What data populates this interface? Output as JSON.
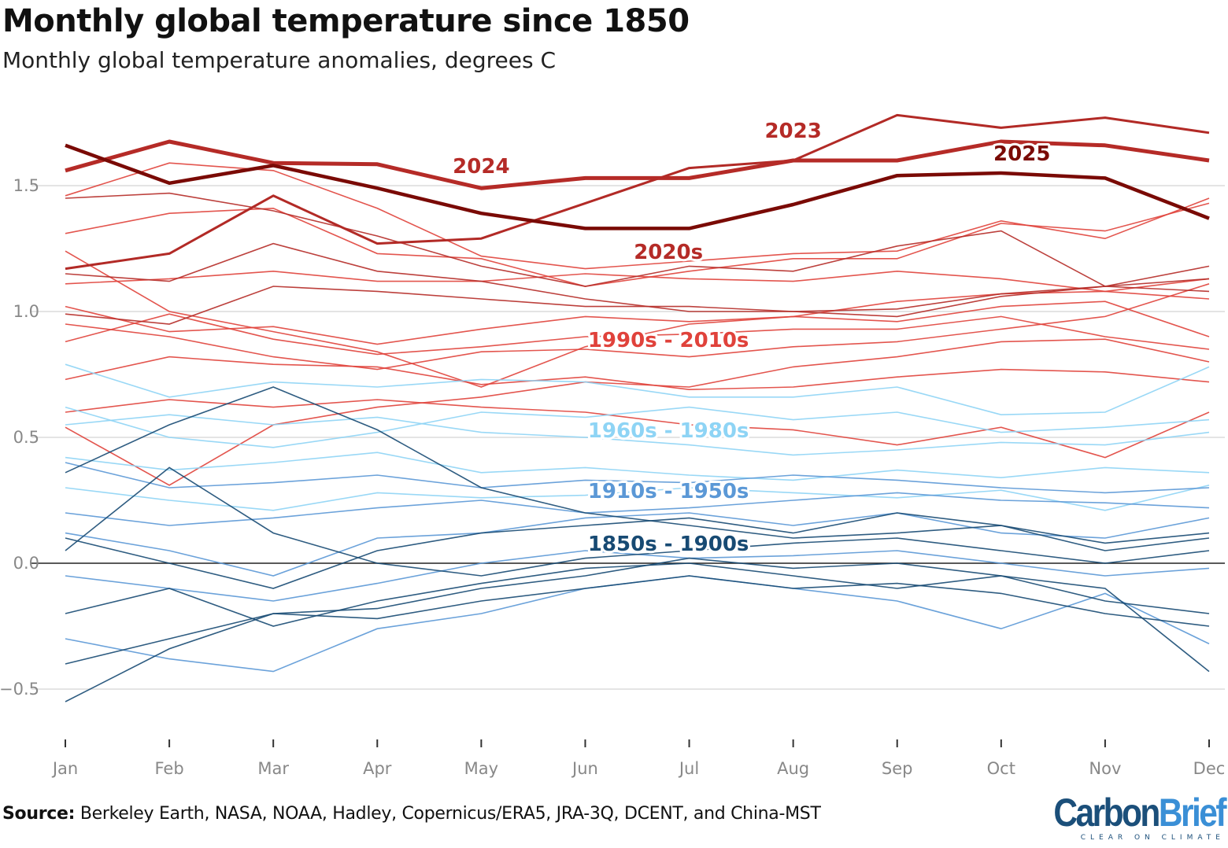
{
  "chart_data": {
    "type": "line",
    "title": "Monthly global temperature since 1850",
    "subtitle": "Monthly global temperature anomalies, degrees C",
    "xlabel": "",
    "ylabel": "",
    "categories": [
      "Jan",
      "Feb",
      "Mar",
      "Apr",
      "May",
      "Jun",
      "Jul",
      "Aug",
      "Sep",
      "Oct",
      "Nov",
      "Dec"
    ],
    "ylim": [
      -0.65,
      1.9
    ],
    "yticks": [
      "1.5",
      "1.0",
      "0.5",
      "0.0",
      "−0.5"
    ],
    "ytick_values": [
      1.5,
      1.0,
      0.5,
      0.0,
      -0.5
    ],
    "grid": true,
    "legend": "none",
    "highlighted": [
      {
        "name": "2023",
        "color": "#b22a26",
        "values": [
          1.17,
          1.23,
          1.46,
          1.27,
          1.29,
          1.43,
          1.57,
          1.6,
          1.78,
          1.73,
          1.77,
          1.71
        ]
      },
      {
        "name": "2024",
        "color": "#b52b27",
        "values": [
          1.56,
          1.675,
          1.59,
          1.585,
          1.49,
          1.53,
          1.53,
          1.6,
          1.6,
          1.675,
          1.66,
          1.6
        ]
      },
      {
        "name": "2025",
        "color": "#7a0a05",
        "values": [
          1.66,
          1.51,
          1.58,
          1.49,
          1.39,
          1.33,
          1.33,
          1.425,
          1.54,
          1.55,
          1.53,
          1.37
        ]
      }
    ],
    "groups": [
      {
        "name": "2020s",
        "color": "#b52b27",
        "series": [
          [
            1.15,
            1.12,
            1.27,
            1.16,
            1.12,
            1.05,
            1.0,
            1.0,
            1.01,
            1.07,
            1.1,
            1.13
          ],
          [
            1.45,
            1.47,
            1.4,
            1.3,
            1.18,
            1.1,
            1.18,
            1.16,
            1.26,
            1.32,
            1.1,
            1.08
          ],
          [
            0.99,
            0.95,
            1.1,
            1.08,
            1.05,
            1.02,
            1.02,
            1.0,
            0.98,
            1.06,
            1.1,
            1.18
          ]
        ]
      },
      {
        "name": "1990s - 2010s",
        "color": "#e0423b",
        "series": [
          [
            1.31,
            1.39,
            1.41,
            1.23,
            1.21,
            1.1,
            1.16,
            1.21,
            1.21,
            1.35,
            1.32,
            1.43
          ],
          [
            1.46,
            1.59,
            1.56,
            1.41,
            1.22,
            1.17,
            1.2,
            1.23,
            1.24,
            1.36,
            1.29,
            1.45
          ],
          [
            1.02,
            0.92,
            0.94,
            0.87,
            0.93,
            0.98,
            0.96,
            0.98,
            0.96,
            1.02,
            1.04,
            0.9
          ],
          [
            0.88,
            0.99,
            0.89,
            0.83,
            0.86,
            0.9,
            0.91,
            0.93,
            0.93,
            0.98,
            0.9,
            0.85
          ],
          [
            0.73,
            0.82,
            0.79,
            0.78,
            0.71,
            0.74,
            0.69,
            0.7,
            0.74,
            0.77,
            0.76,
            0.72
          ],
          [
            0.6,
            0.65,
            0.62,
            0.65,
            0.62,
            0.6,
            0.55,
            0.53,
            0.47,
            0.54,
            0.42,
            0.6
          ],
          [
            0.54,
            0.31,
            0.55,
            0.62,
            0.66,
            0.72,
            0.7,
            0.78,
            0.82,
            0.88,
            0.89,
            0.8
          ],
          [
            1.24,
            1.0,
            0.92,
            0.84,
            0.7,
            0.86,
            0.95,
            0.98,
            1.04,
            1.07,
            1.08,
            1.13
          ],
          [
            0.95,
            0.9,
            0.82,
            0.77,
            0.84,
            0.85,
            0.82,
            0.86,
            0.88,
            0.93,
            0.98,
            1.11
          ],
          [
            1.11,
            1.13,
            1.16,
            1.12,
            1.12,
            1.15,
            1.13,
            1.12,
            1.16,
            1.13,
            1.08,
            1.05
          ]
        ]
      },
      {
        "name": "1960s - 1980s",
        "color": "#8ed4f5",
        "series": [
          [
            0.79,
            0.66,
            0.72,
            0.7,
            0.73,
            0.72,
            0.66,
            0.66,
            0.7,
            0.59,
            0.6,
            0.78
          ],
          [
            0.55,
            0.59,
            0.55,
            0.58,
            0.52,
            0.5,
            0.47,
            0.43,
            0.45,
            0.48,
            0.47,
            0.52
          ],
          [
            0.42,
            0.37,
            0.4,
            0.44,
            0.36,
            0.38,
            0.35,
            0.33,
            0.37,
            0.34,
            0.38,
            0.36
          ],
          [
            0.3,
            0.25,
            0.21,
            0.28,
            0.26,
            0.27,
            0.3,
            0.28,
            0.26,
            0.29,
            0.21,
            0.31
          ],
          [
            0.62,
            0.5,
            0.46,
            0.52,
            0.6,
            0.58,
            0.62,
            0.57,
            0.6,
            0.52,
            0.54,
            0.57
          ]
        ]
      },
      {
        "name": "1910s - 1950s",
        "color": "#5b98d6",
        "series": [
          [
            0.4,
            0.3,
            0.32,
            0.35,
            0.3,
            0.33,
            0.32,
            0.35,
            0.33,
            0.3,
            0.28,
            0.3
          ],
          [
            0.12,
            0.05,
            -0.05,
            0.1,
            0.12,
            0.18,
            0.2,
            0.15,
            0.2,
            0.12,
            0.1,
            0.18
          ],
          [
            -0.3,
            -0.38,
            -0.43,
            -0.26,
            -0.2,
            -0.1,
            -0.05,
            -0.1,
            -0.15,
            -0.26,
            -0.12,
            -0.32
          ],
          [
            0.2,
            0.15,
            0.18,
            0.22,
            0.25,
            0.2,
            0.22,
            0.25,
            0.28,
            0.25,
            0.24,
            0.22
          ],
          [
            -0.05,
            -0.1,
            -0.15,
            -0.08,
            0.0,
            0.05,
            0.02,
            0.03,
            0.05,
            0.0,
            -0.05,
            -0.02
          ]
        ]
      },
      {
        "name": "1850s - 1900s",
        "color": "#174a73",
        "series": [
          [
            -0.55,
            -0.34,
            -0.2,
            -0.18,
            -0.1,
            -0.05,
            0.02,
            -0.02,
            0.0,
            -0.05,
            -0.1,
            -0.43
          ],
          [
            0.36,
            0.55,
            0.7,
            0.53,
            0.3,
            0.2,
            0.15,
            0.1,
            0.12,
            0.15,
            0.05,
            0.1
          ],
          [
            0.05,
            0.38,
            0.12,
            0.0,
            -0.05,
            0.02,
            0.05,
            0.08,
            0.1,
            0.05,
            0.0,
            0.05
          ],
          [
            -0.2,
            -0.1,
            -0.25,
            -0.15,
            -0.08,
            -0.02,
            0.0,
            -0.05,
            -0.1,
            -0.05,
            -0.15,
            -0.2
          ],
          [
            0.1,
            0.0,
            -0.1,
            0.05,
            0.12,
            0.15,
            0.18,
            0.12,
            0.2,
            0.15,
            0.08,
            0.12
          ],
          [
            -0.4,
            -0.3,
            -0.2,
            -0.22,
            -0.15,
            -0.1,
            -0.05,
            -0.1,
            -0.08,
            -0.12,
            -0.2,
            -0.25
          ]
        ]
      }
    ],
    "source_label": "Source:",
    "source_text": " Berkeley Earth, NASA, NOAA, Hadley, Copernicus/ERA5, JRA-3Q, DCENT, and China-MST"
  },
  "logo": {
    "name": "CarbonBrief",
    "part1": "Carbon",
    "part2": "Brief",
    "tagline": "CLEAR ON CLIMATE",
    "color1": "#1b4f7a",
    "color2": "#3a8fd6"
  }
}
